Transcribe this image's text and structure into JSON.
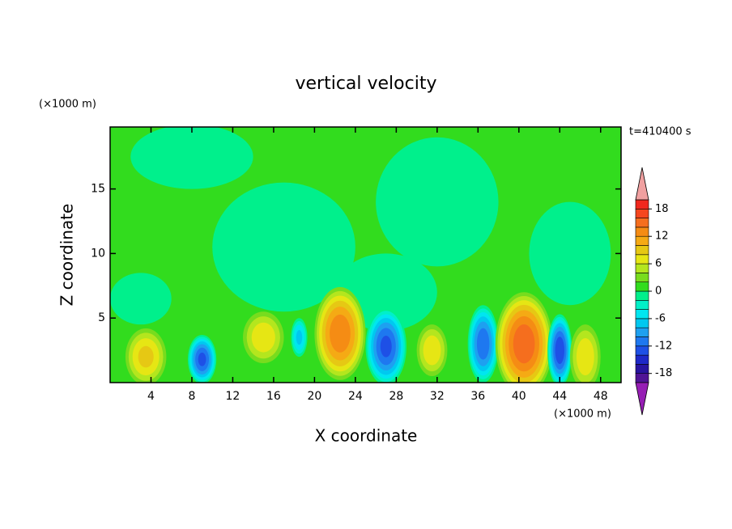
{
  "chart_data": {
    "type": "contour",
    "title": "vertical velocity",
    "time_label": "t=410400 s",
    "x_label": "X coordinate",
    "x_unit": "(×1000 m)",
    "y_label": "Z coordinate",
    "y_unit": "(×1000 m)",
    "xlim": [
      0,
      50
    ],
    "xticks": [
      4,
      8,
      12,
      16,
      20,
      24,
      28,
      32,
      36,
      40,
      44,
      48
    ],
    "ylim": [
      0,
      19.8
    ],
    "yticks": [
      5,
      10,
      15
    ],
    "background_value": 1,
    "features": [
      {
        "x": 17,
        "z": 10.5,
        "value": -1,
        "rx": 7,
        "rz": 5
      },
      {
        "x": 32,
        "z": 14,
        "value": -1,
        "rx": 6,
        "rz": 5
      },
      {
        "x": 8,
        "z": 17.5,
        "value": -1,
        "rx": 6,
        "rz": 2.5
      },
      {
        "x": 45,
        "z": 10,
        "value": -1,
        "rx": 4,
        "rz": 4
      },
      {
        "x": 27,
        "z": 7,
        "value": -1,
        "rx": 5,
        "rz": 3
      },
      {
        "x": 3,
        "z": 6.5,
        "value": -1,
        "rx": 3,
        "rz": 2
      },
      {
        "x": 3.5,
        "z": 2,
        "value": 9,
        "rx": 2,
        "rz": 2.2
      },
      {
        "x": 9,
        "z": 1.8,
        "value": -13,
        "rx": 1.4,
        "rz": 1.9
      },
      {
        "x": 15,
        "z": 3.5,
        "value": 8,
        "rx": 2,
        "rz": 2
      },
      {
        "x": 18.5,
        "z": 3.5,
        "value": -7,
        "rx": 0.8,
        "rz": 1.5
      },
      {
        "x": 22.5,
        "z": 3.8,
        "value": 14,
        "rx": 2.5,
        "rz": 3.6
      },
      {
        "x": 27,
        "z": 2.8,
        "value": -13,
        "rx": 2,
        "rz": 3
      },
      {
        "x": 31.5,
        "z": 2.5,
        "value": 8,
        "rx": 1.5,
        "rz": 2
      },
      {
        "x": 36.5,
        "z": 3,
        "value": -12,
        "rx": 1.5,
        "rz": 3
      },
      {
        "x": 40.5,
        "z": 3,
        "value": 16,
        "rx": 2.8,
        "rz": 4
      },
      {
        "x": 44,
        "z": 2.5,
        "value": -14,
        "rx": 1.2,
        "rz": 2.8
      },
      {
        "x": 46.5,
        "z": 2,
        "value": 8,
        "rx": 1.5,
        "rz": 2.5
      }
    ],
    "levels": [
      -20,
      -18,
      -16,
      -14,
      -12,
      -10,
      -8,
      -6,
      -4,
      -2,
      0,
      2,
      4,
      6,
      8,
      10,
      12,
      14,
      16,
      18,
      20
    ],
    "colors": [
      "#501496",
      "#2814a0",
      "#1e28c8",
      "#1e50e6",
      "#1e78f0",
      "#1ea0f0",
      "#00c8f0",
      "#00e6f0",
      "#00f0c8",
      "#00f08c",
      "#32dc1e",
      "#78dc1e",
      "#b4e61e",
      "#e6e614",
      "#e6c814",
      "#f5aa14",
      "#f58c14",
      "#f56e1e",
      "#f5461e",
      "#f0281e"
    ],
    "over_color": "#f0a0a0",
    "under_color": "#961eb4",
    "colorbar_ticks": [
      -18,
      -12,
      -6,
      0,
      6,
      12,
      18
    ]
  }
}
